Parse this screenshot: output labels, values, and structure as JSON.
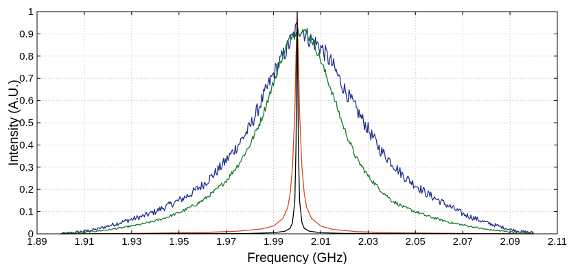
{
  "chart_data": {
    "type": "line",
    "title": "",
    "xlabel": "Frequency (GHz)",
    "ylabel": "Intensity (A.U.)",
    "xlim": [
      1.89,
      2.11
    ],
    "ylim": [
      0,
      1
    ],
    "x_ticks": [
      1.89,
      1.91,
      1.93,
      1.95,
      1.97,
      1.99,
      2.01,
      2.03,
      2.05,
      2.07,
      2.09,
      2.11
    ],
    "x_tick_labels": [
      "1.89",
      "1.91",
      "1.93",
      "1.95",
      "1.97",
      "1.99",
      "2.01",
      "2.03",
      "2.05",
      "2.07",
      "2.09",
      "2.11"
    ],
    "y_ticks": [
      0,
      0.1,
      0.2,
      0.3,
      0.4,
      0.5,
      0.6,
      0.7,
      0.8,
      0.9,
      1
    ],
    "y_tick_labels": [
      "0",
      "0.1",
      "0.2",
      "0.3",
      "0.4",
      "0.5",
      "0.6",
      "0.7",
      "0.8",
      "0.9",
      "1"
    ],
    "grid": true,
    "legend": "none",
    "series": [
      {
        "color": "#1f2f8c",
        "x": [
          1.9,
          1.905,
          1.91,
          1.915,
          1.92,
          1.925,
          1.93,
          1.935,
          1.94,
          1.945,
          1.95,
          1.955,
          1.96,
          1.965,
          1.97,
          1.975,
          1.98,
          1.985,
          1.99,
          1.995,
          1.998,
          2.0,
          2.002,
          2.005,
          2.01,
          2.015,
          2.02,
          2.025,
          2.03,
          2.035,
          2.04,
          2.045,
          2.05,
          2.055,
          2.06,
          2.065,
          2.07,
          2.075,
          2.08,
          2.085,
          2.09,
          2.095,
          2.1
        ],
        "y": [
          0.0,
          0.005,
          0.012,
          0.02,
          0.035,
          0.05,
          0.065,
          0.08,
          0.1,
          0.125,
          0.15,
          0.18,
          0.22,
          0.27,
          0.33,
          0.4,
          0.48,
          0.6,
          0.72,
          0.82,
          0.88,
          0.93,
          0.92,
          0.88,
          0.84,
          0.76,
          0.65,
          0.56,
          0.47,
          0.38,
          0.32,
          0.26,
          0.22,
          0.18,
          0.15,
          0.12,
          0.09,
          0.07,
          0.05,
          0.035,
          0.02,
          0.01,
          0.005
        ]
      },
      {
        "color": "#137a2a",
        "x": [
          1.9,
          1.905,
          1.91,
          1.915,
          1.92,
          1.925,
          1.93,
          1.935,
          1.94,
          1.945,
          1.95,
          1.955,
          1.96,
          1.965,
          1.97,
          1.975,
          1.98,
          1.985,
          1.99,
          1.993,
          1.996,
          1.998,
          2.0,
          2.002,
          2.004,
          2.007,
          2.01,
          2.015,
          2.02,
          2.025,
          2.03,
          2.035,
          2.04,
          2.045,
          2.05,
          2.055,
          2.06,
          2.065,
          2.07,
          2.075,
          2.08,
          2.085,
          2.09,
          2.095,
          2.1
        ],
        "y": [
          0.0,
          0.003,
          0.007,
          0.012,
          0.018,
          0.026,
          0.035,
          0.045,
          0.058,
          0.075,
          0.095,
          0.12,
          0.15,
          0.19,
          0.24,
          0.31,
          0.4,
          0.52,
          0.68,
          0.78,
          0.86,
          0.9,
          0.91,
          0.92,
          0.9,
          0.86,
          0.78,
          0.63,
          0.47,
          0.34,
          0.26,
          0.2,
          0.15,
          0.12,
          0.1,
          0.08,
          0.065,
          0.05,
          0.04,
          0.03,
          0.02,
          0.014,
          0.009,
          0.005,
          0.002
        ]
      },
      {
        "color": "#d4461b",
        "x": [
          1.9,
          1.93,
          1.96,
          1.975,
          1.985,
          1.99,
          1.994,
          1.996,
          1.997,
          1.998,
          1.999,
          1.9995,
          2.0,
          2.0005,
          2.001,
          2.002,
          2.003,
          2.004,
          2.006,
          2.01,
          2.015,
          2.025,
          2.04,
          2.07,
          2.1
        ],
        "y": [
          0.0,
          0.002,
          0.006,
          0.012,
          0.022,
          0.035,
          0.07,
          0.12,
          0.18,
          0.3,
          0.55,
          0.8,
          0.97,
          0.8,
          0.55,
          0.3,
          0.18,
          0.12,
          0.07,
          0.035,
          0.02,
          0.01,
          0.005,
          0.002,
          0.0
        ]
      },
      {
        "color": "#000000",
        "x": [
          1.9,
          1.98,
          1.99,
          1.995,
          1.997,
          1.998,
          1.999,
          1.9995,
          1.9998,
          2.0,
          2.0002,
          2.0005,
          2.001,
          2.002,
          2.003,
          2.005,
          2.01,
          2.02,
          2.1
        ],
        "y": [
          0.0,
          0.002,
          0.005,
          0.012,
          0.025,
          0.05,
          0.15,
          0.4,
          0.75,
          1.0,
          0.75,
          0.4,
          0.15,
          0.05,
          0.025,
          0.012,
          0.005,
          0.002,
          0.0
        ]
      }
    ]
  }
}
